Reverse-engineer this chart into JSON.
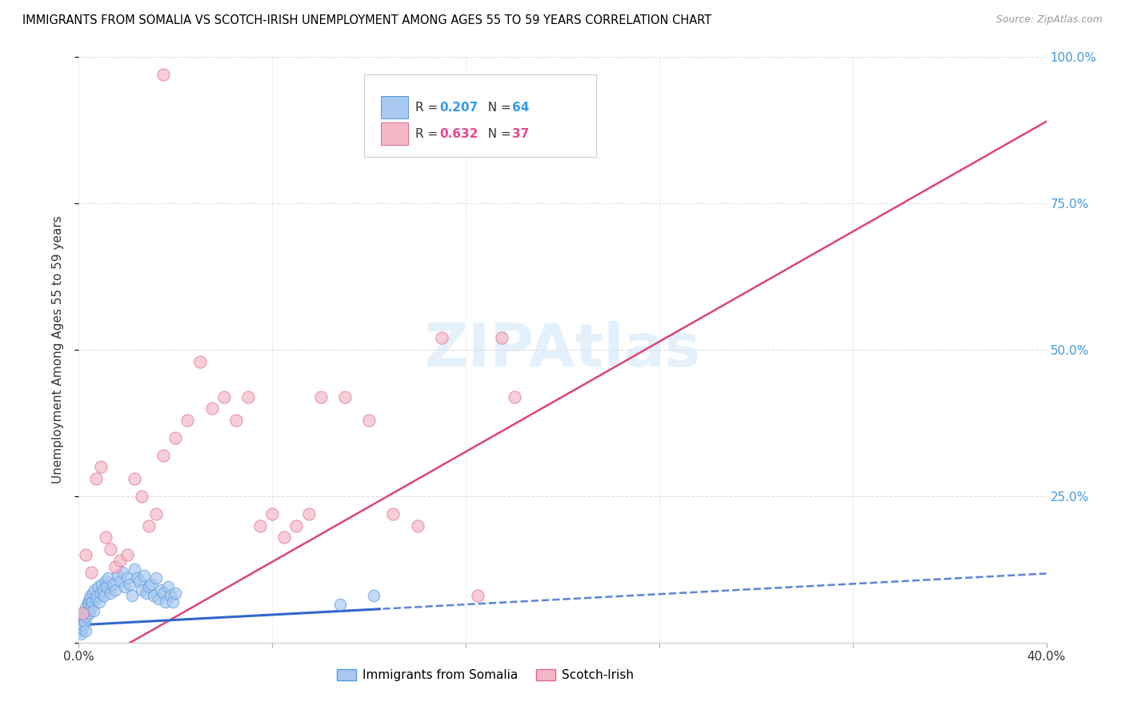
{
  "title": "IMMIGRANTS FROM SOMALIA VS SCOTCH-IRISH UNEMPLOYMENT AMONG AGES 55 TO 59 YEARS CORRELATION CHART",
  "source": "Source: ZipAtlas.com",
  "ylabel": "Unemployment Among Ages 55 to 59 years",
  "xlim": [
    0.0,
    40.0
  ],
  "ylim": [
    0.0,
    100.0
  ],
  "blue_R": 0.207,
  "blue_N": 64,
  "pink_R": 0.632,
  "pink_N": 37,
  "blue_color": "#a8c8f0",
  "pink_color": "#f5b8c8",
  "blue_edge_color": "#5599dd",
  "pink_edge_color": "#dd6688",
  "blue_line_color": "#3366cc",
  "pink_line_color": "#dd4477",
  "legend_blue_label": "Immigrants from Somalia",
  "legend_pink_label": "Scotch-Irish",
  "watermark": "ZIPAtlas",
  "blue_R_color": "#3399ee",
  "pink_R_color": "#ee4488",
  "right_axis_color": "#4499dd",
  "blue_reg_intercept": 3.0,
  "blue_reg_slope": 0.22,
  "blue_solid_end_x": 12.5,
  "pink_reg_intercept": -5.0,
  "pink_reg_slope": 2.35
}
